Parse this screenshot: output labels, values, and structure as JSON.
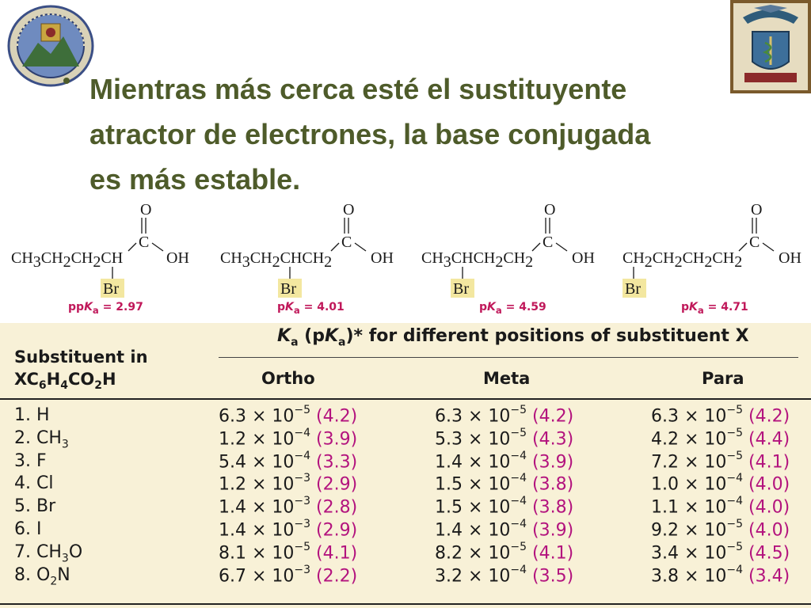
{
  "slide": {
    "heading_lines": [
      "Mientras más cerca esté el sustituyente",
      "atractor de electrones, la base conjugada",
      "es más estable."
    ],
    "logos": {
      "left": "university-seal-icon",
      "right": "faculty-crest-icon"
    },
    "colors": {
      "heading": "#4e5b2a",
      "pka": "#c0185a",
      "table_bg": "#f8f1d7",
      "br_highlight": "#f3e7a0"
    }
  },
  "molecules": [
    {
      "formula_parts": [
        "CH",
        "3",
        "CH",
        "2",
        "CH",
        "2",
        "CH"
      ],
      "br_label": "Br",
      "pka_label": "pK",
      "pka_sub": "a",
      "pka_value": " = 2.97"
    },
    {
      "formula_parts": [
        "CH",
        "3",
        "CH",
        "2",
        "CHCH",
        "2"
      ],
      "br_label": "Br",
      "pka_label": "pK",
      "pka_sub": "a",
      "pka_value": " = 4.01"
    },
    {
      "formula_parts": [
        "CH",
        "3",
        "CHCH",
        "2",
        "CH",
        "2"
      ],
      "br_label": "Br",
      "pka_label": "pK",
      "pka_sub": "a",
      "pka_value": " = 4.59"
    },
    {
      "formula_parts": [
        "CH",
        "2",
        "CH",
        "2",
        "CH",
        "2",
        "CH",
        "2"
      ],
      "br_label": "Br",
      "pka_label": "pK",
      "pka_sub": "a",
      "pka_value": " = 4.71"
    }
  ],
  "carboxyl": {
    "o": "O",
    "c": "C",
    "oh": "OH"
  },
  "table": {
    "substituent_header_line1": "Substituent in",
    "substituent_header_line2_parts": [
      "XC",
      "6",
      "H",
      "4",
      "CO",
      "2",
      "H"
    ],
    "group_header": "K",
    "group_header_rest": " for different positions of substituent X",
    "columns": [
      "Ortho",
      "Meta",
      "Para"
    ],
    "rows": [
      {
        "label": "1. H",
        "label_sub": "",
        "label_tail": "",
        "ortho": [
          "6.3",
          "−5",
          "(4.2)"
        ],
        "meta": [
          "6.3",
          "−5",
          "(4.2)"
        ],
        "para": [
          "6.3",
          "−5",
          "(4.2)"
        ]
      },
      {
        "label": "2. CH",
        "label_sub": "3",
        "label_tail": "",
        "ortho": [
          "1.2",
          "−4",
          "(3.9)"
        ],
        "meta": [
          "5.3",
          "−5",
          "(4.3)"
        ],
        "para": [
          "4.2",
          "−5",
          "(4.4)"
        ]
      },
      {
        "label": "3. F",
        "label_sub": "",
        "label_tail": "",
        "ortho": [
          "5.4",
          "−4",
          "(3.3)"
        ],
        "meta": [
          "1.4",
          "−4",
          "(3.9)"
        ],
        "para": [
          "7.2",
          "−5",
          "(4.1)"
        ]
      },
      {
        "label": "4. Cl",
        "label_sub": "",
        "label_tail": "",
        "ortho": [
          "1.2",
          "−3",
          "(2.9)"
        ],
        "meta": [
          "1.5",
          "−4",
          "(3.8)"
        ],
        "para": [
          "1.0",
          "−4",
          "(4.0)"
        ]
      },
      {
        "label": "5. Br",
        "label_sub": "",
        "label_tail": "",
        "ortho": [
          "1.4",
          "−3",
          "(2.8)"
        ],
        "meta": [
          "1.5",
          "−4",
          "(3.8)"
        ],
        "para": [
          "1.1",
          "−4",
          "(4.0)"
        ]
      },
      {
        "label": "6. I",
        "label_sub": "",
        "label_tail": "",
        "ortho": [
          "1.4",
          "−3",
          "(2.9)"
        ],
        "meta": [
          "1.4",
          "−4",
          "(3.9)"
        ],
        "para": [
          "9.2",
          "−5",
          "(4.0)"
        ]
      },
      {
        "label": "7. CH",
        "label_sub": "3",
        "label_tail": "O",
        "ortho": [
          "8.1",
          "−5",
          "(4.1)"
        ],
        "meta": [
          "8.2",
          "−5",
          "(4.1)"
        ],
        "para": [
          "3.4",
          "−5",
          "(4.5)"
        ]
      },
      {
        "label": "8. O",
        "label_sub": "2",
        "label_tail": "N",
        "ortho": [
          "6.7",
          "−3",
          "(2.2)"
        ],
        "meta": [
          "3.2",
          "−4",
          "(3.5)"
        ],
        "para": [
          "3.8",
          "−4",
          "(3.4)"
        ]
      }
    ]
  }
}
